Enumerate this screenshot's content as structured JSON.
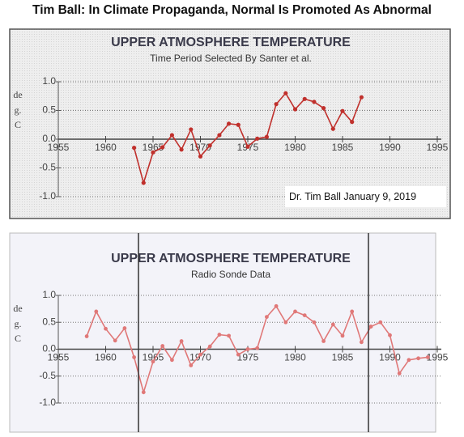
{
  "title": "Tim Ball: In Climate Propaganda, Normal Is Promoted As Abnormal",
  "chart_data": [
    {
      "type": "line",
      "title": "UPPER ATMOSPHERE TEMPERATURE",
      "subtitle": "Time Period Selected By Santer et al.",
      "y_label": "deg.C",
      "annotation": "Dr. Tim Ball January 9, 2019",
      "x": [
        1963,
        1964,
        1965,
        1966,
        1967,
        1968,
        1969,
        1970,
        1971,
        1972,
        1973,
        1974,
        1975,
        1976,
        1977,
        1978,
        1979,
        1980,
        1981,
        1982,
        1983,
        1984,
        1985,
        1986,
        1987
      ],
      "series": [
        {
          "name": "Upper atmosphere temperature",
          "color": "#c0302c",
          "values": [
            -0.15,
            -0.76,
            -0.23,
            -0.14,
            0.07,
            -0.18,
            0.17,
            -0.3,
            -0.11,
            0.07,
            0.27,
            0.25,
            -0.13,
            0.01,
            0.04,
            0.61,
            0.8,
            0.52,
            0.7,
            0.65,
            0.54,
            0.18,
            0.49,
            0.3,
            0.73
          ]
        }
      ],
      "xlim": [
        1955,
        1995
      ],
      "xticks": [
        1955,
        1960,
        1965,
        1970,
        1975,
        1980,
        1985,
        1990,
        1995
      ],
      "ylim": [
        -1,
        1
      ],
      "yticks": [
        {
          "value": 1,
          "label": "1.0"
        },
        {
          "value": 0.5,
          "label": "0.5"
        },
        {
          "value": 0,
          "label": "0.0"
        },
        {
          "value": -0.5,
          "label": "-0.5"
        },
        {
          "value": -1,
          "label": "-1.0"
        }
      ],
      "grid": true
    },
    {
      "type": "line",
      "title": "UPPER ATMOSPHERE TEMPERATURE",
      "subtitle": "Radio Sonde Data",
      "y_label": "deg.C",
      "x": [
        1958,
        1959,
        1960,
        1961,
        1962,
        1963,
        1964,
        1965,
        1966,
        1967,
        1968,
        1969,
        1970,
        1971,
        1972,
        1973,
        1974,
        1975,
        1976,
        1977,
        1978,
        1979,
        1980,
        1981,
        1982,
        1983,
        1984,
        1985,
        1986,
        1987,
        1988,
        1989,
        1990,
        1991,
        1992,
        1993,
        1994
      ],
      "series": [
        {
          "name": "Radio sonde temperature",
          "color": "#e07878",
          "values": [
            0.24,
            0.7,
            0.38,
            0.16,
            0.39,
            -0.15,
            -0.8,
            -0.23,
            0.06,
            -0.2,
            0.15,
            -0.3,
            -0.1,
            0.05,
            0.27,
            0.25,
            -0.1,
            0.0,
            0.02,
            0.6,
            0.8,
            0.5,
            0.7,
            0.63,
            0.5,
            0.15,
            0.46,
            0.25,
            0.7,
            0.13,
            0.42,
            0.5,
            0.26,
            -0.45,
            -0.2,
            -0.17,
            -0.15
          ]
        }
      ],
      "xlim": [
        1955,
        1995
      ],
      "xticks": [
        1955,
        1960,
        1965,
        1970,
        1975,
        1980,
        1985,
        1990,
        1995
      ],
      "ylim": [
        -1,
        1
      ],
      "yticks": [
        {
          "value": 1,
          "label": "1.0"
        },
        {
          "value": 0.5,
          "label": "0.5"
        },
        {
          "value": 0,
          "label": "0.0"
        },
        {
          "value": -0.5,
          "label": "-0.5"
        },
        {
          "value": -1,
          "label": "-1.0"
        }
      ],
      "grid": true
    }
  ]
}
